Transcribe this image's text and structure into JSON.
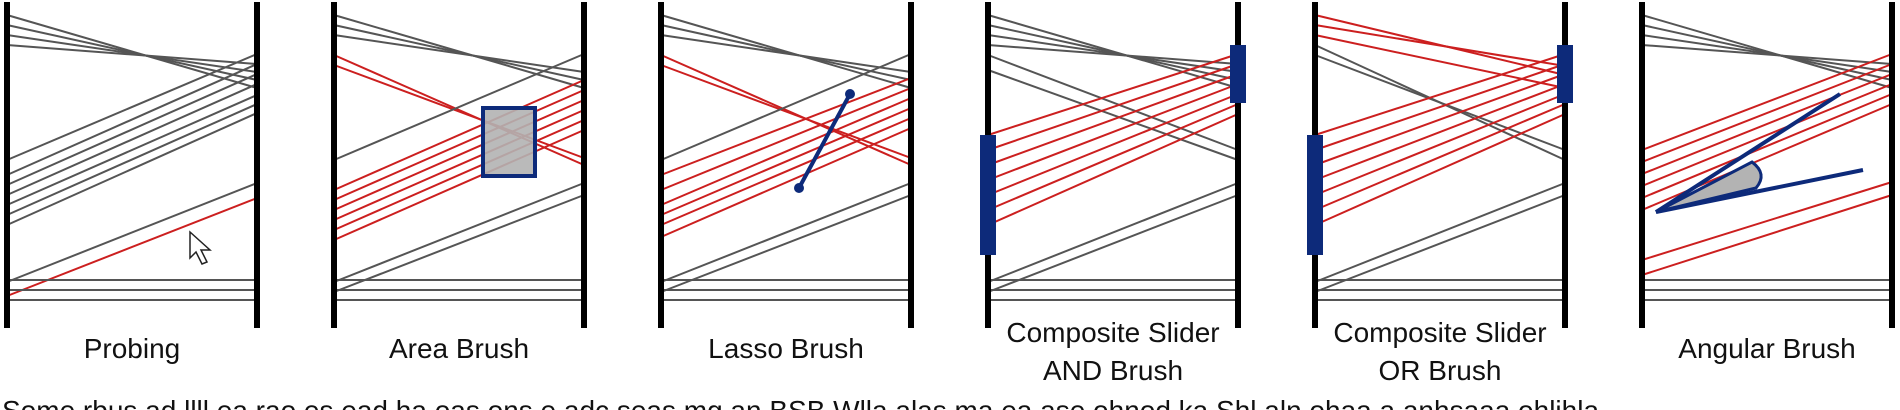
{
  "colors": {
    "axis": "#000000",
    "line": "#555555",
    "highlight": "#cc1f1f",
    "brush_stroke": "#0d2a7a",
    "brush_fill": "#b3b3b3",
    "slider": "#0d2a7a"
  },
  "panels": [
    {
      "id": "probing",
      "label_lines": [
        "Probing"
      ],
      "interaction": "pointer-icon"
    },
    {
      "id": "area-brush",
      "label_lines": [
        "Area Brush"
      ],
      "interaction": "rectangle-brush"
    },
    {
      "id": "lasso-brush",
      "label_lines": [
        "Lasso Brush"
      ],
      "interaction": "line-lasso"
    },
    {
      "id": "composite-and",
      "label_lines": [
        "Composite Slider",
        "AND Brush"
      ],
      "interaction": "axis-sliders"
    },
    {
      "id": "composite-or",
      "label_lines": [
        "Composite Slider",
        "OR Brush"
      ],
      "interaction": "axis-sliders"
    },
    {
      "id": "angular-brush",
      "label_lines": [
        "Angular Brush"
      ],
      "interaction": "angle-wedge"
    }
  ],
  "caption_fragment": "Some rbus ad llll ea rao es ead ha oas ons e adc seas mg an BSB Wlla alas ma ea ase ohnod ka Shl aln ohaa a anhsaaa ohlihla"
}
